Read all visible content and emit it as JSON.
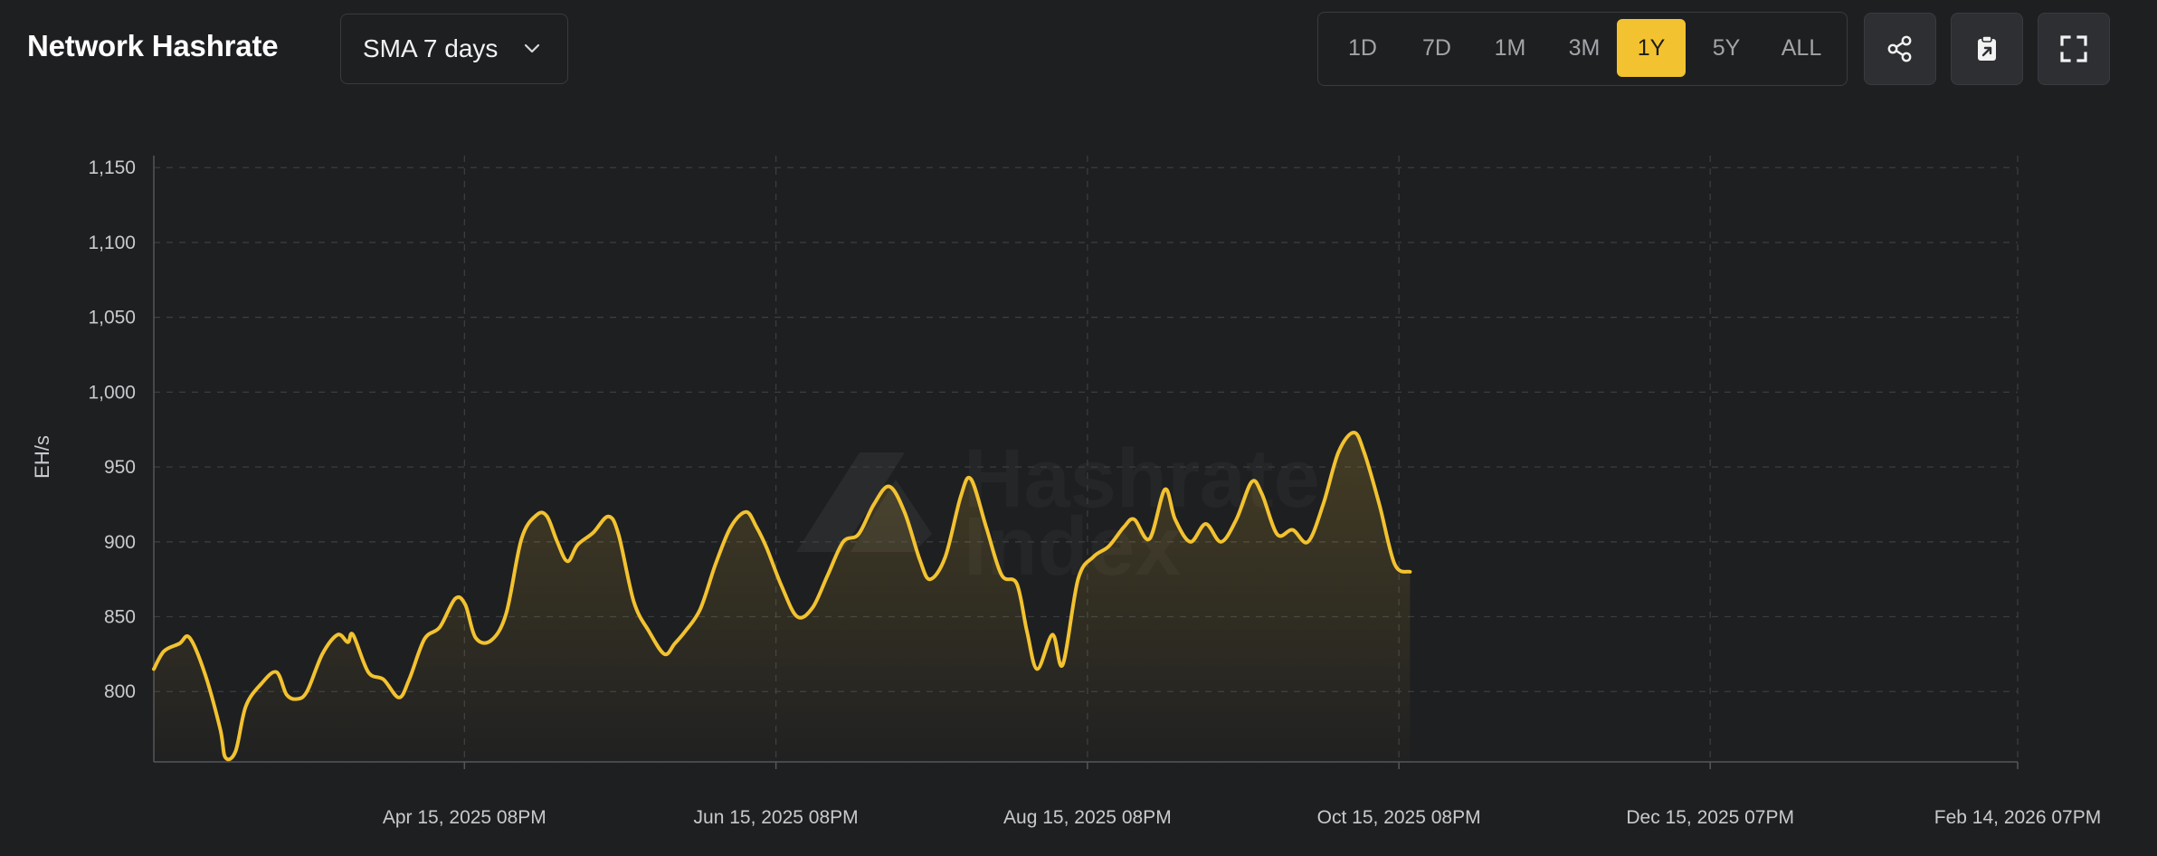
{
  "header": {
    "title": "Network Hashrate",
    "dropdown_value": "SMA 7 days",
    "ranges": [
      "1D",
      "7D",
      "1M",
      "3M",
      "1Y",
      "5Y",
      "ALL"
    ],
    "active_range": "1Y",
    "actions": [
      {
        "name": "share-button",
        "icon": "share-icon"
      },
      {
        "name": "clipboard-button",
        "icon": "clipboard-icon"
      },
      {
        "name": "fullscreen-button",
        "icon": "fullscreen-icon"
      }
    ]
  },
  "colors": {
    "background": "#1e1f21",
    "line": "#f2c230",
    "accent": "#f2c230",
    "grid": "#3b3c40"
  },
  "watermark": [
    "Hashrate",
    "Index"
  ],
  "chart_data": {
    "type": "area",
    "ylabel": "EH/s",
    "ylim": [
      753,
      1158
    ],
    "yticks": [
      800,
      850,
      900,
      950,
      1000,
      1050,
      1100,
      1150
    ],
    "ytick_labels": [
      "800",
      "850",
      "900",
      "950",
      "1,000",
      "1,050",
      "1,100",
      "1,150"
    ],
    "xlim": [
      "2025-02-14",
      "2026-02-14"
    ],
    "xticks": [
      "Apr 15, 2025 08PM",
      "Jun 15, 2025 08PM",
      "Aug 15, 2025 08PM",
      "Oct 15, 2025 08PM",
      "Dec 15, 2025 07PM",
      "Feb 14, 2026 07PM"
    ],
    "grid": true,
    "series": [
      {
        "points": [
          [
            "2025-02-14",
            815
          ],
          [
            "2025-02-16",
            827
          ],
          [
            "2025-02-19",
            832
          ],
          [
            "2025-02-21",
            836
          ],
          [
            "2025-02-24",
            812
          ],
          [
            "2025-02-27",
            775
          ],
          [
            "2025-02-28",
            756
          ],
          [
            "2025-03-02",
            760
          ],
          [
            "2025-03-04",
            790
          ],
          [
            "2025-03-07",
            805
          ],
          [
            "2025-03-10",
            813
          ],
          [
            "2025-03-12",
            798
          ],
          [
            "2025-03-14",
            795
          ],
          [
            "2025-03-16",
            800
          ],
          [
            "2025-03-19",
            825
          ],
          [
            "2025-03-22",
            838
          ],
          [
            "2025-03-24",
            833
          ],
          [
            "2025-03-25",
            838
          ],
          [
            "2025-03-28",
            813
          ],
          [
            "2025-03-31",
            808
          ],
          [
            "2025-04-03",
            796
          ],
          [
            "2025-04-05",
            808
          ],
          [
            "2025-04-08",
            835
          ],
          [
            "2025-04-11",
            843
          ],
          [
            "2025-04-14",
            862
          ],
          [
            "2025-04-16",
            858
          ],
          [
            "2025-04-18",
            836
          ],
          [
            "2025-04-21",
            834
          ],
          [
            "2025-04-24",
            852
          ],
          [
            "2025-04-27",
            902
          ],
          [
            "2025-04-30",
            918
          ],
          [
            "2025-05-02",
            917
          ],
          [
            "2025-05-04",
            900
          ],
          [
            "2025-05-06",
            887
          ],
          [
            "2025-05-08",
            898
          ],
          [
            "2025-05-11",
            906
          ],
          [
            "2025-05-14",
            917
          ],
          [
            "2025-05-16",
            905
          ],
          [
            "2025-05-19",
            860
          ],
          [
            "2025-05-22",
            840
          ],
          [
            "2025-05-25",
            825
          ],
          [
            "2025-05-27",
            832
          ],
          [
            "2025-05-29",
            840
          ],
          [
            "2025-06-01",
            855
          ],
          [
            "2025-06-04",
            885
          ],
          [
            "2025-06-07",
            910
          ],
          [
            "2025-06-10",
            920
          ],
          [
            "2025-06-12",
            910
          ],
          [
            "2025-06-14",
            896
          ],
          [
            "2025-06-17",
            870
          ],
          [
            "2025-06-20",
            850
          ],
          [
            "2025-06-23",
            856
          ],
          [
            "2025-06-26",
            878
          ],
          [
            "2025-06-29",
            900
          ],
          [
            "2025-07-02",
            905
          ],
          [
            "2025-07-05",
            925
          ],
          [
            "2025-07-08",
            937
          ],
          [
            "2025-07-11",
            920
          ],
          [
            "2025-07-14",
            888
          ],
          [
            "2025-07-16",
            875
          ],
          [
            "2025-07-19",
            890
          ],
          [
            "2025-07-22",
            930
          ],
          [
            "2025-07-24",
            942
          ],
          [
            "2025-07-27",
            910
          ],
          [
            "2025-07-30",
            878
          ],
          [
            "2025-08-02",
            872
          ],
          [
            "2025-08-04",
            840
          ],
          [
            "2025-08-06",
            815
          ],
          [
            "2025-08-09",
            838
          ],
          [
            "2025-08-11",
            818
          ],
          [
            "2025-08-14",
            875
          ],
          [
            "2025-08-17",
            890
          ],
          [
            "2025-08-20",
            897
          ],
          [
            "2025-08-23",
            910
          ],
          [
            "2025-08-25",
            915
          ],
          [
            "2025-08-28",
            902
          ],
          [
            "2025-08-31",
            935
          ],
          [
            "2025-09-02",
            915
          ],
          [
            "2025-09-05",
            900
          ],
          [
            "2025-09-08",
            912
          ],
          [
            "2025-09-11",
            900
          ],
          [
            "2025-09-14",
            915
          ],
          [
            "2025-09-17",
            940
          ],
          [
            "2025-09-19",
            932
          ],
          [
            "2025-09-22",
            905
          ],
          [
            "2025-09-25",
            908
          ],
          [
            "2025-09-28",
            900
          ],
          [
            "2025-10-01",
            925
          ],
          [
            "2025-10-04",
            960
          ],
          [
            "2025-10-07",
            973
          ],
          [
            "2025-10-09",
            960
          ],
          [
            "2025-10-12",
            925
          ],
          [
            "2025-10-15",
            885
          ],
          [
            "2025-10-18",
            880
          ]
        ]
      }
    ]
  }
}
